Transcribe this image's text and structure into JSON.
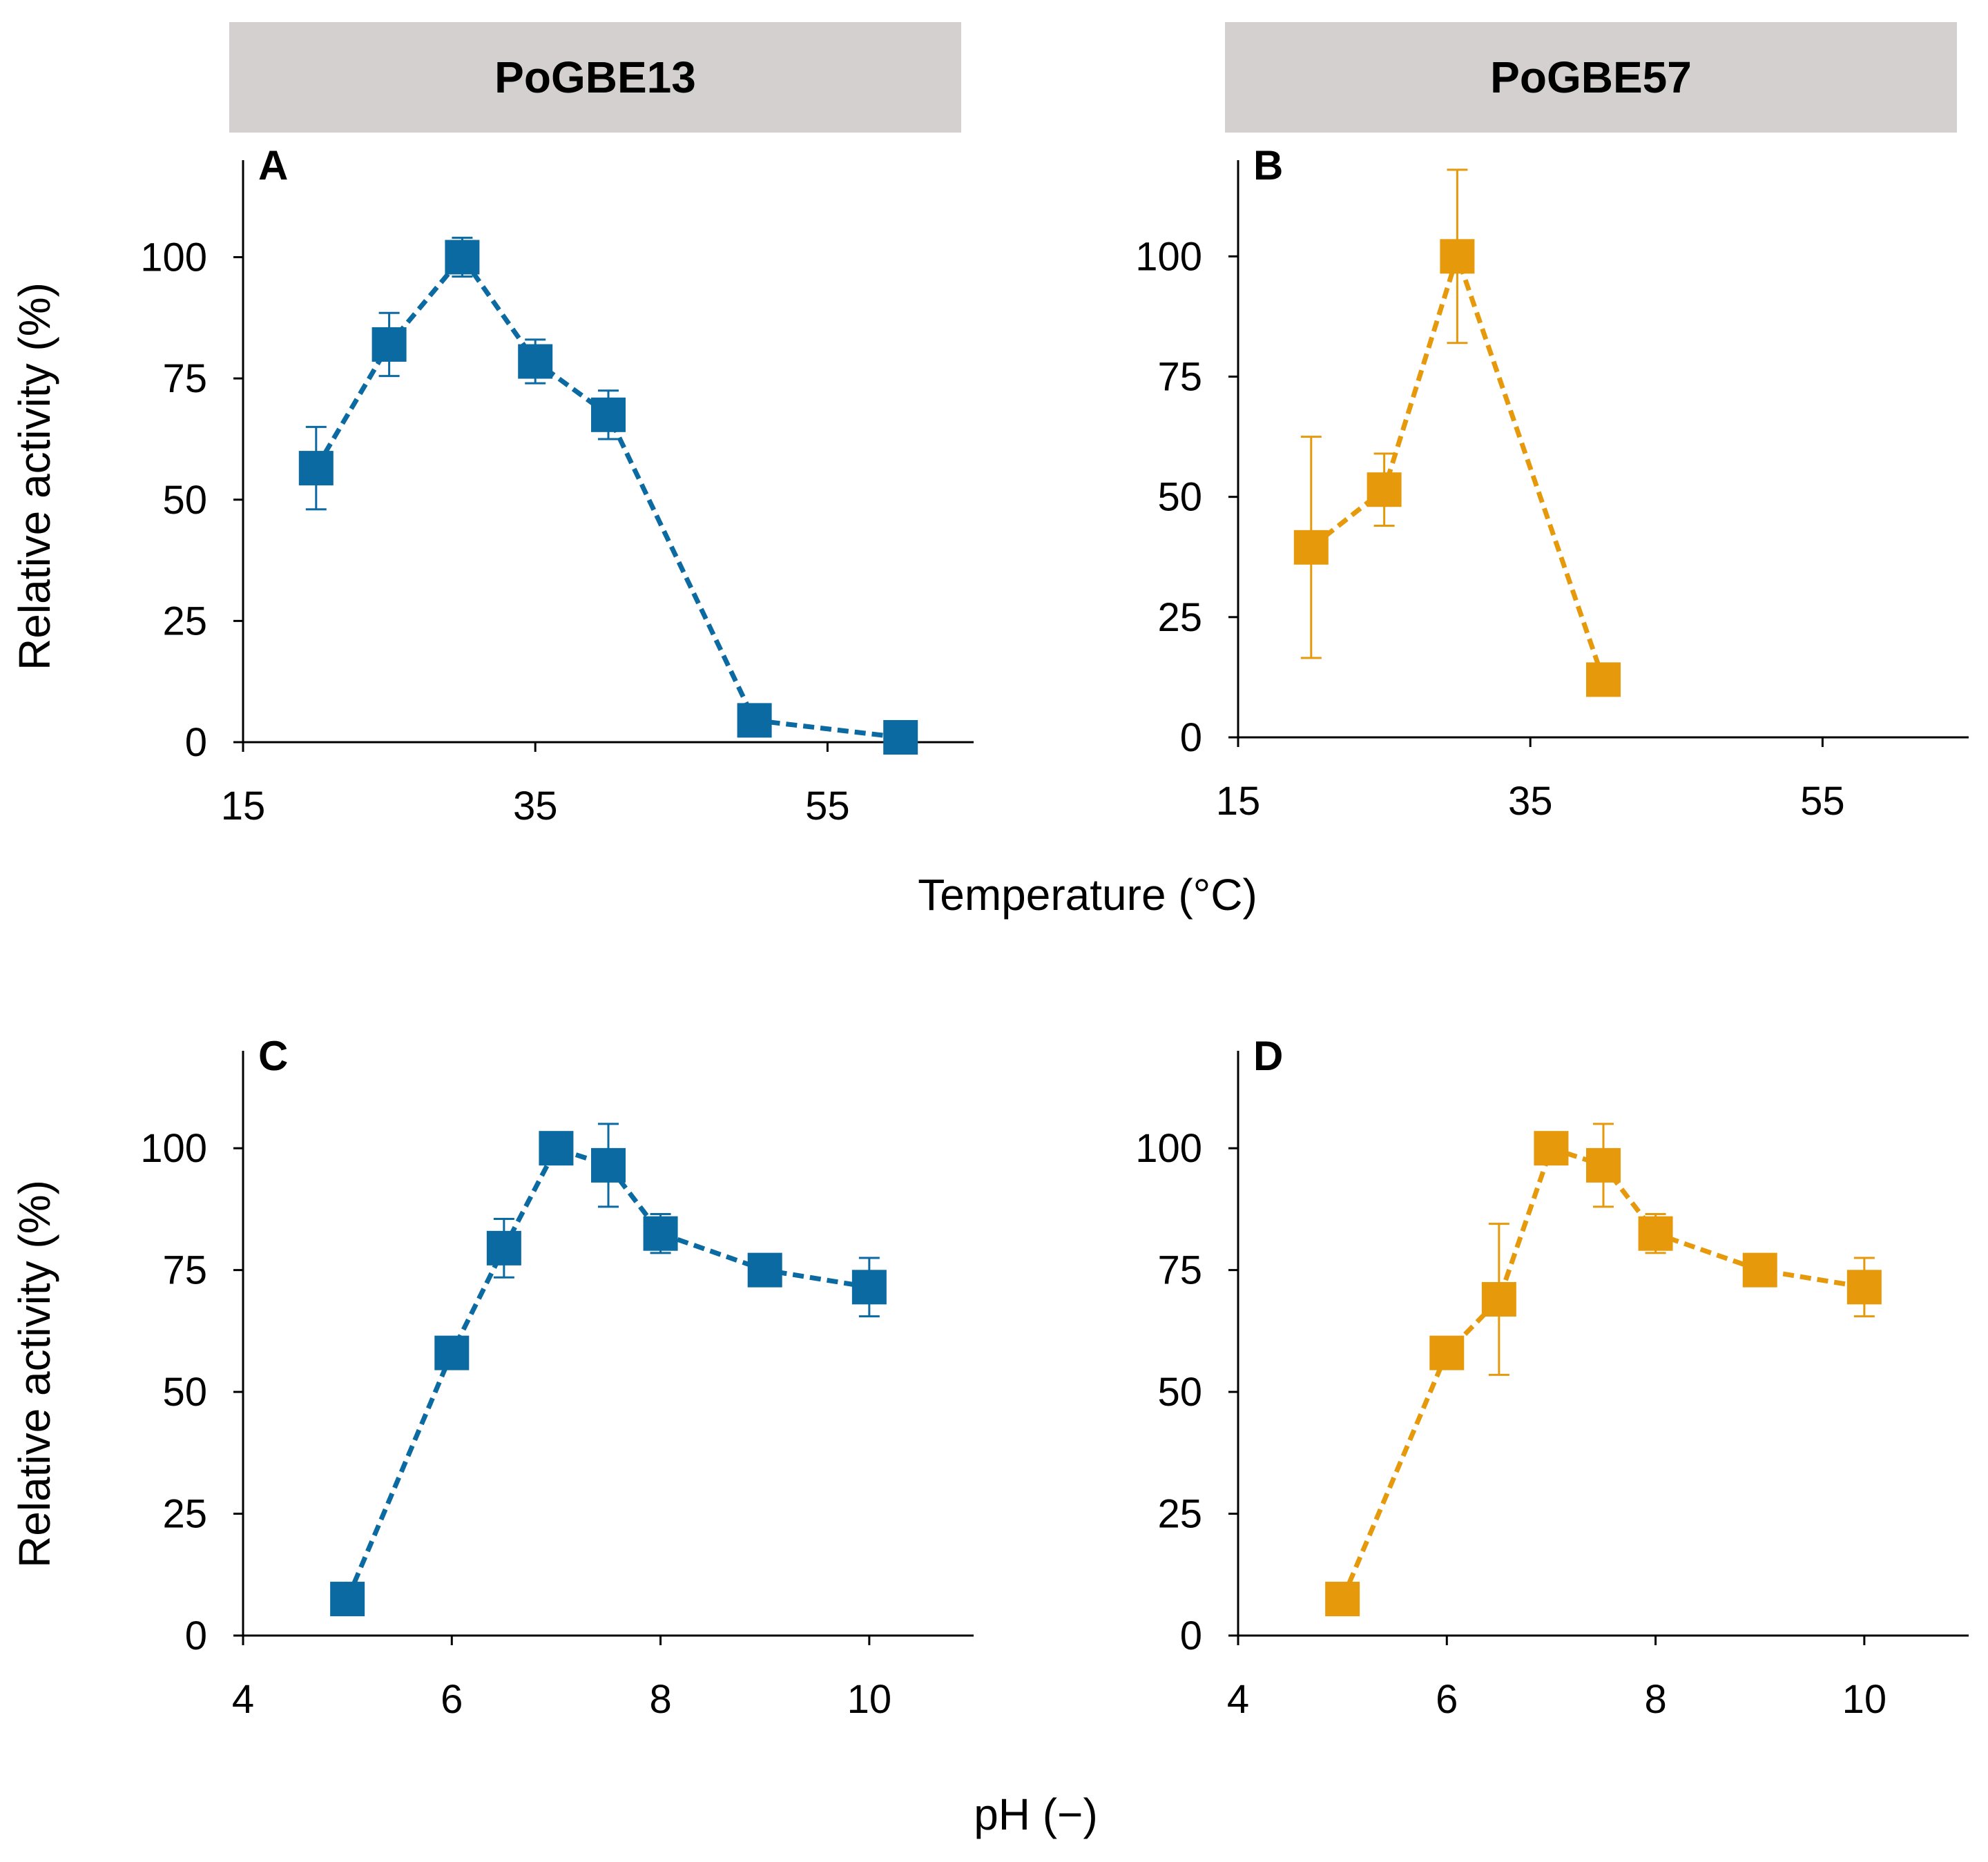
{
  "headers": {
    "left": "PoGBE13",
    "right": "PoGBE57"
  },
  "colors": {
    "blue": "#0a6aa1",
    "orange": "#e69a0b"
  },
  "axis_titles": {
    "y_top": "Relative activity (%)",
    "y_bottom": "Relative activity (%)",
    "x_top": "Temperature (°C)",
    "x_bottom": "pH (−)"
  },
  "chart_data": [
    {
      "panel": "A",
      "type": "line",
      "title": "PoGBE13",
      "color": "#0a6aa1",
      "xlabel": "Temperature (°C)",
      "ylabel": "Relative activity (%)",
      "xlim": [
        15,
        65
      ],
      "ylim": [
        0,
        120
      ],
      "xticks": [
        15,
        35,
        55
      ],
      "yticks": [
        0,
        25,
        50,
        75,
        100
      ],
      "x": [
        20,
        25,
        30,
        35,
        40,
        50,
        60
      ],
      "y": [
        56.5,
        82,
        100,
        78.5,
        67.5,
        4.5,
        1
      ],
      "err": [
        8.5,
        6.5,
        4,
        4.5,
        5,
        0,
        0
      ]
    },
    {
      "panel": "B",
      "type": "line",
      "title": "PoGBE57",
      "color": "#e69a0b",
      "xlabel": "Temperature (°C)",
      "ylabel": "Relative activity (%)",
      "xlim": [
        15,
        65
      ],
      "ylim": [
        0,
        120
      ],
      "xticks": [
        15,
        35,
        55
      ],
      "yticks": [
        0,
        25,
        50,
        75,
        100
      ],
      "x": [
        20,
        25,
        30,
        40
      ],
      "y": [
        39.5,
        51.5,
        100,
        12
      ],
      "err": [
        23,
        7.5,
        18,
        0
      ]
    },
    {
      "panel": "C",
      "type": "line",
      "title": "PoGBE13",
      "color": "#0a6aa1",
      "xlabel": "pH (−)",
      "ylabel": "Relative activity (%)",
      "xlim": [
        4,
        11
      ],
      "ylim": [
        0,
        120
      ],
      "xticks": [
        4,
        6,
        8,
        10
      ],
      "yticks": [
        0,
        25,
        50,
        75,
        100
      ],
      "x": [
        5,
        6,
        6.5,
        7,
        7.5,
        8,
        9,
        10
      ],
      "y": [
        7.5,
        58,
        79.5,
        100,
        96.5,
        82.5,
        75,
        71.5
      ],
      "err": [
        0,
        0,
        6,
        0,
        8.5,
        4,
        0,
        6
      ]
    },
    {
      "panel": "D",
      "type": "line",
      "title": "PoGBE57",
      "color": "#e69a0b",
      "xlabel": "pH (−)",
      "ylabel": "Relative activity (%)",
      "xlim": [
        4,
        11
      ],
      "ylim": [
        0,
        120
      ],
      "xticks": [
        4,
        6,
        8,
        10
      ],
      "yticks": [
        0,
        25,
        50,
        75,
        100
      ],
      "x": [
        5,
        6,
        6.5,
        7,
        7.5,
        8,
        9,
        10
      ],
      "y": [
        7.5,
        58,
        69,
        100,
        96.5,
        82.5,
        75,
        71.5
      ],
      "err": [
        0,
        0,
        15.5,
        0,
        8.5,
        4,
        0,
        6
      ]
    }
  ]
}
